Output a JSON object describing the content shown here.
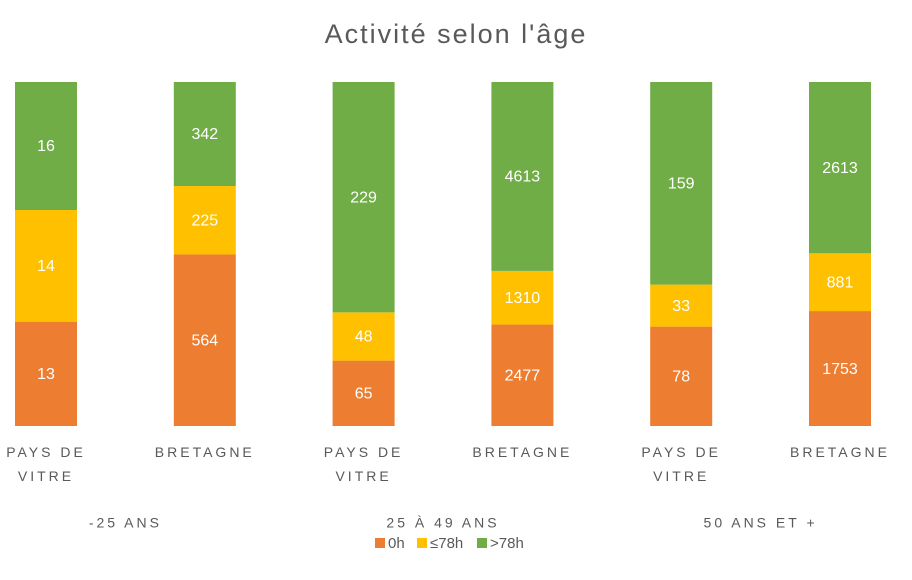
{
  "chart_data": {
    "type": "bar",
    "stacked": "percent",
    "title": "Activité selon l'âge",
    "categories": [
      "PAYS DE VITRE",
      "BRETAGNE",
      "PAYS DE VITRE",
      "BRETAGNE",
      "PAYS DE VITRE",
      "BRETAGNE"
    ],
    "groups": [
      "-25 ANS",
      "25 À 49 ANS",
      "50 ANS ET +"
    ],
    "series": [
      {
        "name": "0h",
        "color": "#ed7d31",
        "values": [
          13,
          564,
          65,
          2477,
          78,
          1753
        ]
      },
      {
        "name": "≤78h",
        "color": "#ffc000",
        "values": [
          14,
          225,
          48,
          1310,
          33,
          881
        ]
      },
      {
        "name": ">78h",
        "color": "#70ad47",
        "values": [
          16,
          342,
          229,
          4613,
          159,
          2613
        ]
      }
    ],
    "legend": "bottom"
  }
}
